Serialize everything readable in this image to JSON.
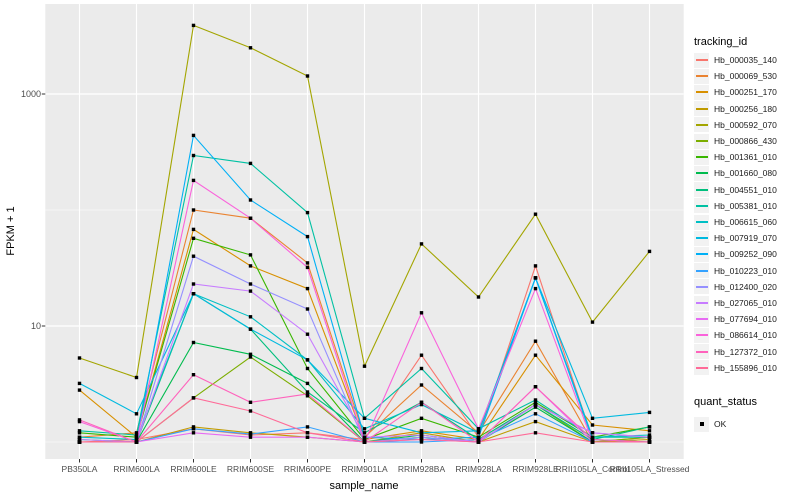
{
  "chart_data": {
    "type": "line",
    "title": "",
    "xlabel": "sample_name",
    "ylabel": "FPKM + 1",
    "y_scale": "log10",
    "y_axis_tick_labels": [
      "1000",
      "10"
    ],
    "y_major_gridlines": [
      10,
      1000
    ],
    "y_minor_gridlines": [
      1,
      100
    ],
    "ylim": [
      0.71,
      6000
    ],
    "grid": true,
    "legend_position": "right",
    "panel_bg": "#EBEBEB",
    "grid_color": "#FFFFFF",
    "tick_label_color": "#4D4D4D",
    "point_marker": {
      "shape": "filled-square",
      "color": "#000000",
      "size": 3.4
    },
    "categories": [
      "PB350LA",
      "RRIM600LA",
      "RRIM600LE",
      "RRIM600SE",
      "RRIM600PE",
      "RRIM901LA",
      "RRIM928BA",
      "RRIM928LA",
      "RRIM928LE",
      "RRII105LA_Control",
      "RRII105LA_Stressed"
    ],
    "legend_title": "tracking_id",
    "series": [
      {
        "name": "Hb_000035_140",
        "color": "#F8766D",
        "values": [
          1.0,
          1.05,
          1.3,
          1.15,
          1.2,
          1.05,
          5.6,
          1.1,
          33,
          1.05,
          1.0
        ]
      },
      {
        "name": "Hb_000069_530",
        "color": "#EA8331",
        "values": [
          1.1,
          1.2,
          100,
          85,
          35,
          1.1,
          3.1,
          1.2,
          7.4,
          1.0,
          1.1
        ]
      },
      {
        "name": "Hb_000251_170",
        "color": "#D89000",
        "values": [
          2.8,
          1.1,
          68,
          33,
          21,
          1.05,
          1.25,
          1.05,
          5.6,
          1.4,
          1.25
        ]
      },
      {
        "name": "Hb_000256_180",
        "color": "#C09B00",
        "values": [
          1.0,
          1.0,
          1.35,
          1.2,
          1.1,
          1.0,
          1.2,
          1.0,
          1.5,
          1.0,
          1.05
        ]
      },
      {
        "name": "Hb_000592_070",
        "color": "#A3A500",
        "values": [
          5.3,
          3.6,
          3900,
          2500,
          1430,
          4.5,
          51,
          17.8,
          92,
          10.8,
          44
        ]
      },
      {
        "name": "Hb_000866_430",
        "color": "#7CAE00",
        "values": [
          1.0,
          1.0,
          2.4,
          5.4,
          2.5,
          1.0,
          1.1,
          1.0,
          2.1,
          1.0,
          1.1
        ]
      },
      {
        "name": "Hb_001361_010",
        "color": "#39B600",
        "values": [
          1.2,
          1.1,
          57,
          41,
          4.3,
          1.05,
          1.6,
          1.1,
          2.2,
          1.1,
          1.35
        ]
      },
      {
        "name": "Hb_001660_080",
        "color": "#00BB4E",
        "values": [
          1.0,
          1.0,
          7.2,
          5.7,
          3.2,
          1.0,
          1.15,
          1.0,
          2.0,
          1.0,
          1.0
        ]
      },
      {
        "name": "Hb_004551_010",
        "color": "#00BF7D",
        "values": [
          1.05,
          1.0,
          19,
          9.4,
          2.7,
          1.2,
          2.2,
          1.05,
          2.1,
          1.05,
          1.35
        ]
      },
      {
        "name": "Hb_005381_010",
        "color": "#00C1A3",
        "values": [
          1.25,
          1.15,
          295,
          252,
          95,
          1.6,
          4.3,
          1.3,
          2.3,
          1.1,
          1.1
        ]
      },
      {
        "name": "Hb_006615_060",
        "color": "#00BFC4",
        "values": [
          1.1,
          1.05,
          19,
          12,
          5.1,
          1.3,
          2.1,
          1.2,
          26,
          1.1,
          1.15
        ]
      },
      {
        "name": "Hb_007919_070",
        "color": "#00BAE0",
        "values": [
          3.2,
          1.75,
          19,
          9.4,
          5.1,
          1.6,
          1.2,
          1.25,
          26,
          1.6,
          1.8
        ]
      },
      {
        "name": "Hb_009252_090",
        "color": "#00B0F6",
        "values": [
          1.0,
          1.0,
          440,
          122,
          59,
          1.1,
          1.05,
          1.1,
          26,
          1.05,
          1.0
        ]
      },
      {
        "name": "Hb_010223_010",
        "color": "#35A2FF",
        "values": [
          1.0,
          1.0,
          1.3,
          1.17,
          1.35,
          1.0,
          1.0,
          1.05,
          1.75,
          1.0,
          1.0
        ]
      },
      {
        "name": "Hb_012400_020",
        "color": "#9590FF",
        "values": [
          1.0,
          1.0,
          40,
          23,
          14,
          1.0,
          1.1,
          1.0,
          2.1,
          1.2,
          1.1
        ]
      },
      {
        "name": "Hb_027065_010",
        "color": "#C77CFF",
        "values": [
          1.05,
          1.0,
          23,
          20,
          8.5,
          1.1,
          1.15,
          1.0,
          2.1,
          1.2,
          1.1
        ]
      },
      {
        "name": "Hb_077694_010",
        "color": "#E76BF3",
        "values": [
          1.0,
          1.0,
          1.2,
          1.1,
          1.1,
          1.0,
          1.05,
          1.0,
          3.0,
          1.0,
          1.0
        ]
      },
      {
        "name": "Hb_086614_010",
        "color": "#FA62DB",
        "values": [
          1.5,
          1.0,
          180,
          85,
          32,
          1.0,
          13,
          1.3,
          21,
          1.0,
          1.0
        ]
      },
      {
        "name": "Hb_127372_010",
        "color": "#FF62BC",
        "values": [
          1.55,
          1.0,
          3.8,
          2.2,
          2.6,
          1.0,
          2.2,
          1.0,
          3.0,
          1.05,
          1.0
        ]
      },
      {
        "name": "Hb_155896_010",
        "color": "#FF6A98",
        "values": [
          1.0,
          1.0,
          2.4,
          1.85,
          1.2,
          1.0,
          1.05,
          1.0,
          1.2,
          1.0,
          1.0
        ]
      }
    ],
    "quant_status_legend": {
      "title": "quant_status",
      "items": [
        {
          "label": "OK",
          "marker": "filled-square",
          "color": "#000000"
        }
      ]
    }
  }
}
